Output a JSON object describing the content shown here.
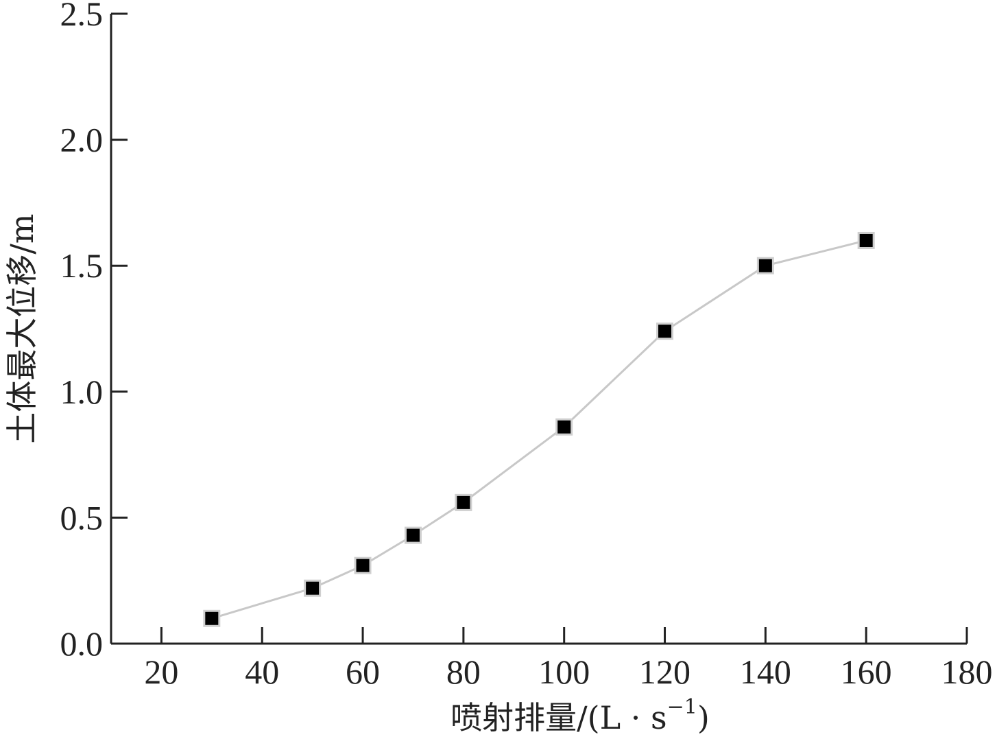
{
  "chart_data": {
    "type": "line",
    "xlabel": "喷射排量/(L·s⁻¹)",
    "xlabel_parts": {
      "main": "喷射排量/(L · s",
      "sup": "−1",
      "close": ")"
    },
    "ylabel": "土体最大位移/m",
    "xlim": [
      10,
      180
    ],
    "ylim": [
      0,
      2.5
    ],
    "xticks": [
      20,
      40,
      60,
      80,
      100,
      120,
      140,
      160,
      180
    ],
    "yticks": [
      "0.0",
      "0.5",
      "1.0",
      "1.5",
      "2.0",
      "2.5"
    ],
    "grid": false,
    "x": [
      30,
      50,
      60,
      70,
      80,
      100,
      120,
      140,
      160
    ],
    "series": [
      {
        "values": [
          0.1,
          0.22,
          0.31,
          0.43,
          0.56,
          0.86,
          1.24,
          1.5,
          1.6
        ],
        "marker": "square"
      }
    ],
    "colors": {
      "line": "#c8c8c8",
      "marker": "#000000",
      "axis": "#222222"
    }
  }
}
